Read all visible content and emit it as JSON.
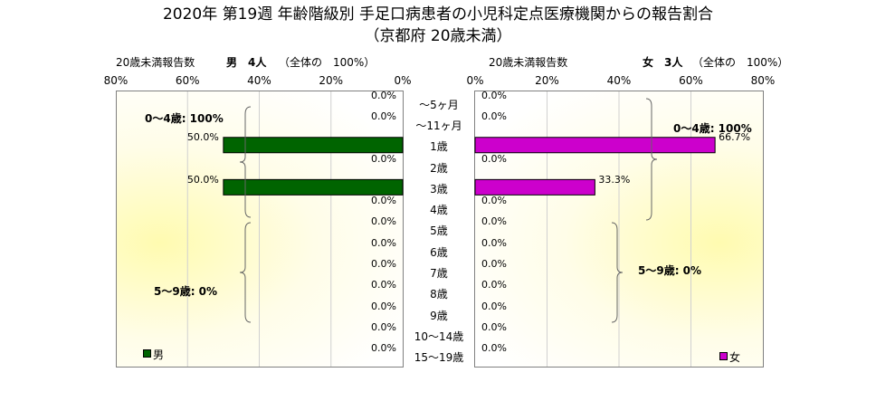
{
  "chart_data": {
    "type": "bar",
    "title": "2020年 第19週 年齢階級別 手足口病患者の小児科定点医療機関からの報告割合",
    "subtitle": "（京都府 20歳未満）",
    "categories": [
      "～5ヶ月",
      "～11ヶ月",
      "1歳",
      "2歳",
      "3歳",
      "4歳",
      "5歳",
      "6歳",
      "7歳",
      "8歳",
      "9歳",
      "10～14歳",
      "15～19歳"
    ],
    "xlim": [
      0,
      80
    ],
    "x_ticks": [
      "80%",
      "60%",
      "40%",
      "20%",
      "0%"
    ],
    "x_ticks_right": [
      "0%",
      "20%",
      "40%",
      "60%",
      "80%"
    ],
    "series": [
      {
        "name": "男",
        "color": "#006400",
        "values": [
          0.0,
          0.0,
          50.0,
          0.0,
          50.0,
          0.0,
          0.0,
          0.0,
          0.0,
          0.0,
          0.0,
          0.0,
          0.0
        ],
        "labels": [
          "0.0%",
          "0.0%",
          "50.0%",
          "0.0%",
          "50.0%",
          "0.0%",
          "0.0%",
          "0.0%",
          "0.0%",
          "0.0%",
          "0.0%",
          "0.0%",
          "0.0%"
        ],
        "header_label": "20歳未満報告数",
        "header_count": "男　4人",
        "header_total": "（全体の　100%）",
        "groups": [
          "0～4歳: 100%",
          "5～9歳: 0%"
        ]
      },
      {
        "name": "女",
        "color": "#cc00cc",
        "values": [
          0.0,
          0.0,
          66.7,
          0.0,
          33.3,
          0.0,
          0.0,
          0.0,
          0.0,
          0.0,
          0.0,
          0.0,
          0.0
        ],
        "labels": [
          "0.0%",
          "0.0%",
          "66.7%",
          "0.0%",
          "33.3%",
          "0.0%",
          "0.0%",
          "0.0%",
          "0.0%",
          "0.0%",
          "0.0%",
          "0.0%",
          "0.0%"
        ],
        "header_label": "20歳未満報告数",
        "header_count": "女　3人",
        "header_total": "（全体の　100%）",
        "groups": [
          "0～4歳: 100%",
          "5～9歳: 0%"
        ]
      }
    ],
    "grid": true,
    "legend": "bottom-left / bottom-right"
  }
}
